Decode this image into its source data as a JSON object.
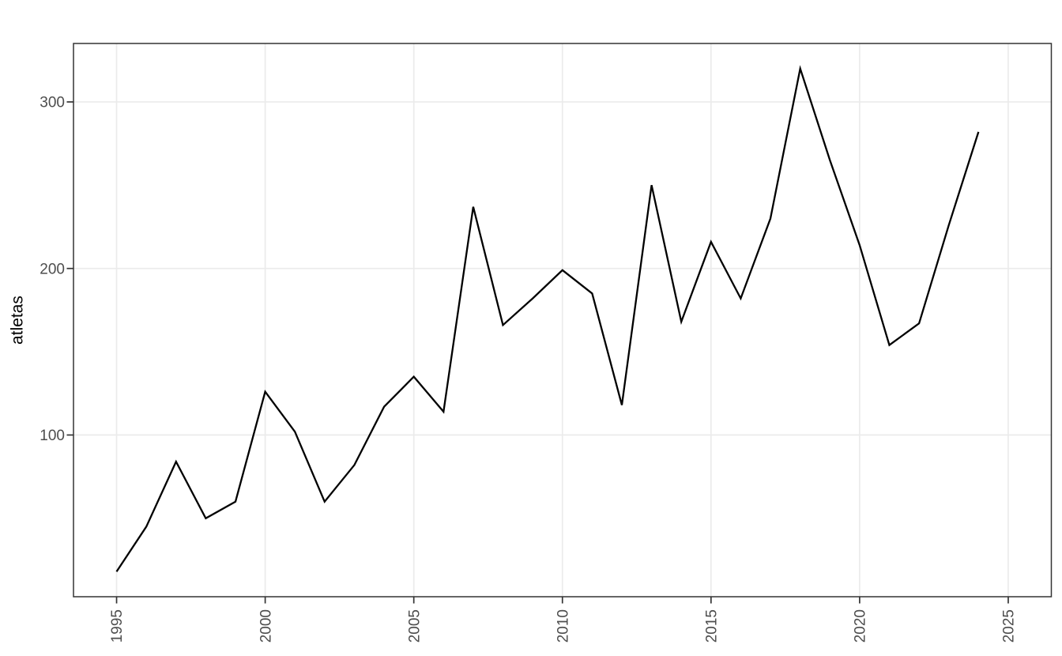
{
  "figure": {
    "background_color": "#ffffff",
    "panel_background_color": "#ffffff",
    "panel_border_color": "#333333",
    "grid_color": "#ebebeb",
    "tick_mark_color": "#333333",
    "tick_label_color": "#4d4d4d",
    "line_color": "#000000"
  },
  "chart_data": {
    "type": "line",
    "title": "",
    "xlabel": "",
    "ylabel": "atletas",
    "x_ticks": [
      1995,
      2000,
      2005,
      2010,
      2015,
      2020,
      2025
    ],
    "x_tick_labels": [
      "1995",
      "2000",
      "2005",
      "2010",
      "2015",
      "2020",
      "2025"
    ],
    "y_ticks": [
      100,
      200,
      300
    ],
    "y_tick_labels": [
      "100",
      "200",
      "300"
    ],
    "xlim": [
      1993.55,
      2026.45
    ],
    "ylim": [
      2.9,
      335.1
    ],
    "grid": true,
    "legend": false,
    "x_tick_label_rotation_deg": -90,
    "series": [
      {
        "name": "atletas",
        "x": [
          1995,
          1996,
          1997,
          1998,
          1999,
          2000,
          2001,
          2002,
          2003,
          2004,
          2005,
          2006,
          2007,
          2008,
          2009,
          2010,
          2011,
          2012,
          2013,
          2014,
          2015,
          2016,
          2017,
          2018,
          2019,
          2020,
          2021,
          2022,
          2023,
          2024
        ],
        "values": [
          18,
          45,
          84,
          50,
          60,
          126,
          102,
          60,
          82,
          117,
          135,
          114,
          237,
          166,
          182,
          199,
          185,
          118,
          250,
          168,
          216,
          182,
          230,
          320,
          265,
          214,
          154,
          167,
          226,
          282
        ]
      }
    ]
  }
}
